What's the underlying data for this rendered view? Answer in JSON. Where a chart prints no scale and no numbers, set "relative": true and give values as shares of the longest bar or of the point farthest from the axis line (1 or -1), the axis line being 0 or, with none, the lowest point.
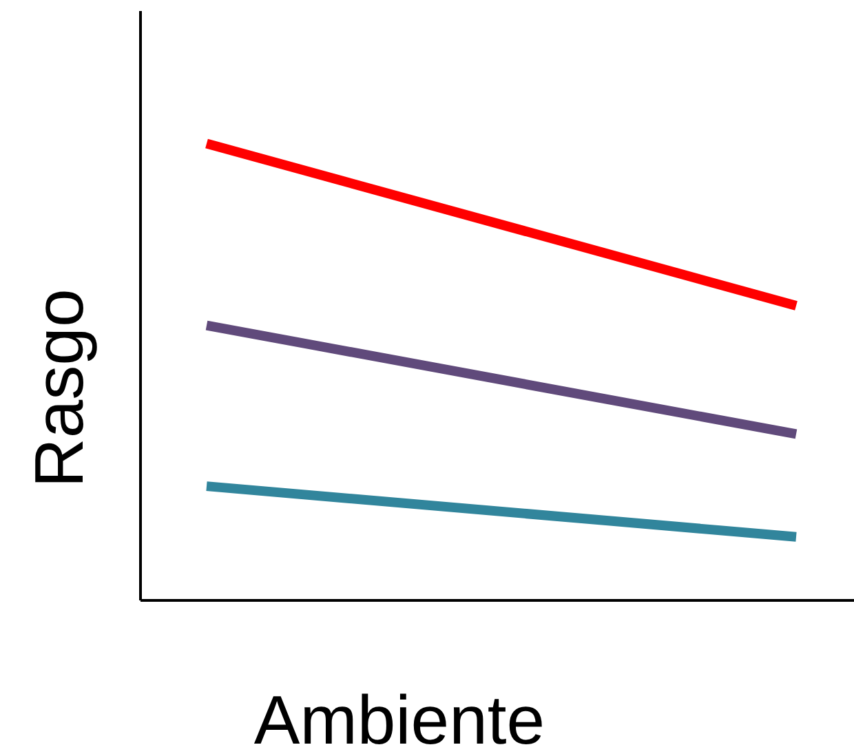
{
  "chart_data": {
    "type": "line",
    "relative": true,
    "xlabel": "Ambiente",
    "ylabel": "Rasgo",
    "categories": [
      null,
      null
    ],
    "series": [
      {
        "color": "#ff0000",
        "values": [
          1,
          0.645
        ]
      },
      {
        "color": "#604a7b",
        "values": [
          0.602,
          0.364
        ]
      },
      {
        "color": "#31859c",
        "values": [
          0.25,
          0.139
        ]
      }
    ],
    "marker": "none",
    "line_style": "solid"
  }
}
